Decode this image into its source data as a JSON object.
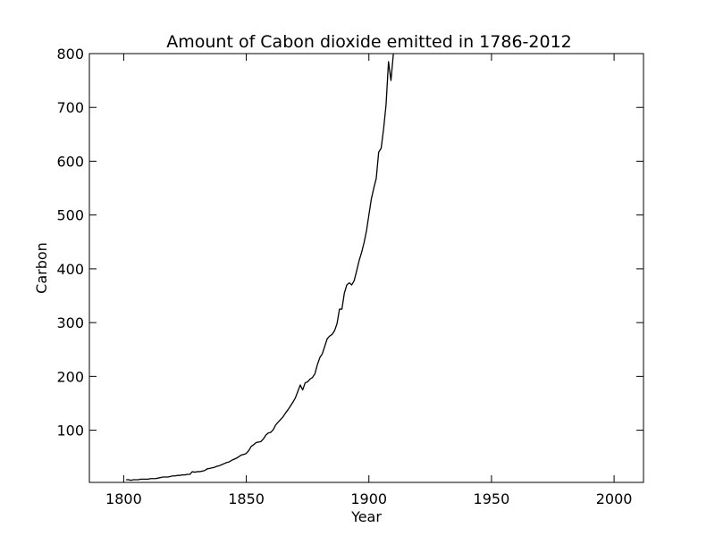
{
  "chart_data": {
    "type": "line",
    "title": "Amount of Cabon dioxide emitted in 1786-2012",
    "xlabel": "Year",
    "ylabel": "Carbon",
    "xlim": [
      1786,
      2012
    ],
    "ylim": [
      3,
      800
    ],
    "xticks": [
      1800,
      1850,
      1900,
      1950,
      2000
    ],
    "yticks": [
      100,
      200,
      300,
      400,
      500,
      600,
      700,
      800
    ],
    "grid": false,
    "line_color": "#000000",
    "series": [
      {
        "x": [
          1801,
          1802,
          1803,
          1804,
          1805,
          1806,
          1807,
          1808,
          1809,
          1810,
          1811,
          1812,
          1813,
          1814,
          1815,
          1816,
          1817,
          1818,
          1819,
          1820,
          1821,
          1822,
          1823,
          1824,
          1825,
          1826,
          1827,
          1828,
          1829,
          1830,
          1831,
          1832,
          1833,
          1834,
          1835,
          1836,
          1837,
          1838,
          1839,
          1840,
          1841,
          1842,
          1843,
          1844,
          1845,
          1846,
          1847,
          1848,
          1849,
          1850,
          1851,
          1852,
          1853,
          1854,
          1855,
          1856,
          1857,
          1858,
          1859,
          1860,
          1861,
          1862,
          1863,
          1864,
          1865,
          1866,
          1867,
          1868,
          1869,
          1870,
          1871,
          1872,
          1873,
          1874,
          1875,
          1876,
          1877,
          1878,
          1879,
          1880,
          1881,
          1882,
          1883,
          1884,
          1885,
          1886,
          1887,
          1888,
          1889,
          1890,
          1891,
          1892,
          1893,
          1894,
          1895,
          1896,
          1897,
          1898,
          1899,
          1900,
          1901,
          1902,
          1903,
          1904,
          1905,
          1906,
          1907,
          1908,
          1909,
          1910
        ],
        "y": [
          8,
          8,
          7,
          8,
          8,
          8,
          9,
          9,
          9,
          9,
          10,
          10,
          10,
          11,
          12,
          13,
          13,
          13,
          14,
          15,
          15,
          16,
          16,
          17,
          17,
          18,
          18,
          23,
          22,
          23,
          23,
          24,
          25,
          28,
          29,
          30,
          31,
          33,
          34,
          36,
          38,
          40,
          41,
          44,
          46,
          48,
          51,
          54,
          55,
          57,
          62,
          70,
          73,
          77,
          78,
          79,
          84,
          91,
          95,
          96,
          101,
          110,
          115,
          120,
          125,
          132,
          138,
          145,
          152,
          160,
          172,
          184,
          175,
          188,
          190,
          195,
          198,
          205,
          222,
          235,
          242,
          256,
          270,
          275,
          278,
          285,
          298,
          325,
          325,
          355,
          370,
          374,
          370,
          378,
          396,
          415,
          430,
          448,
          470,
          500,
          530,
          550,
          568,
          617,
          624,
          660,
          705,
          785,
          750,
          800
        ]
      }
    ]
  }
}
